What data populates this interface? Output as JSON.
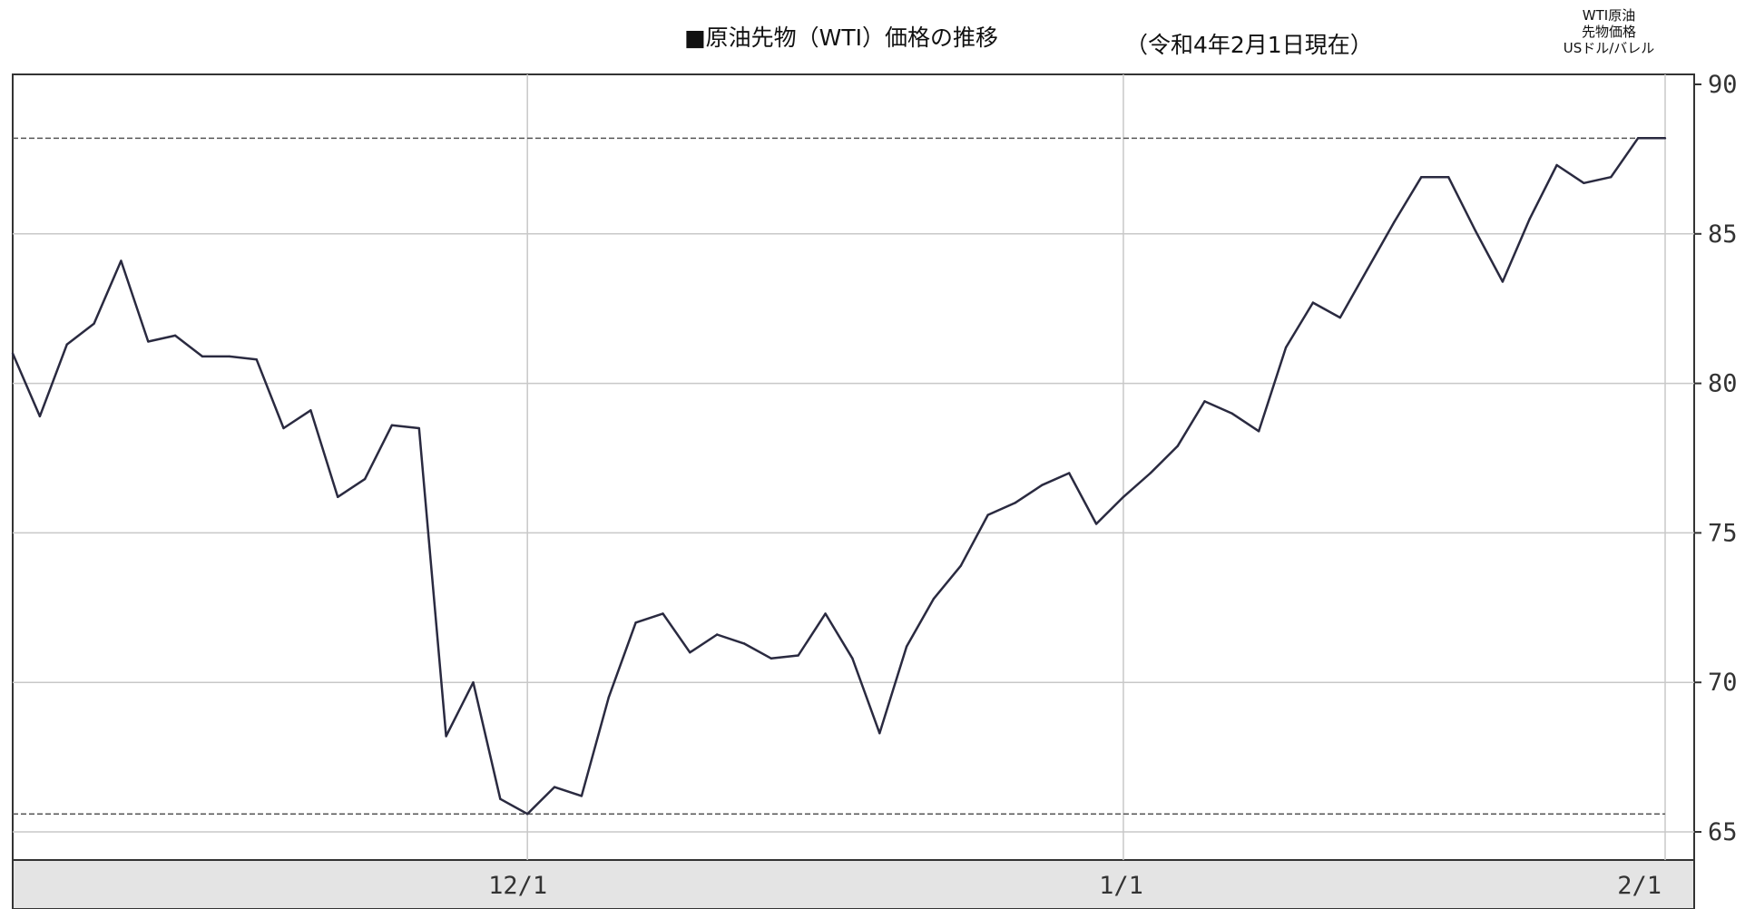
{
  "title": "■原油先物（WTI）価格の推移",
  "date_note": "（令和4年2月1日現在）",
  "unit_label": [
    "WTI原油",
    "先物価格",
    "USドル/バレル"
  ],
  "chart_data": {
    "type": "line",
    "title": "■原油先物（WTI）価格の推移",
    "ylabel": "WTI原油 先物価格 USドル/バレル",
    "ylim": [
      65,
      90
    ],
    "yticks": [
      65,
      70,
      75,
      80,
      85,
      90
    ],
    "xticks": [
      {
        "label": "12/1",
        "x": 19
      },
      {
        "label": "1/1",
        "x": 41
      },
      {
        "label": "2/1",
        "x": 61
      }
    ],
    "x_domain": [
      0,
      61
    ],
    "reference_lines": [
      88.2,
      65.6
    ],
    "series": [
      {
        "color": "#2a2a40",
        "points": [
          [
            0,
            81.0
          ],
          [
            1,
            78.9
          ],
          [
            2,
            81.3
          ],
          [
            3,
            82.0
          ],
          [
            4,
            84.1
          ],
          [
            5,
            81.4
          ],
          [
            6,
            81.6
          ],
          [
            7,
            80.9
          ],
          [
            8,
            80.9
          ],
          [
            9,
            80.8
          ],
          [
            10,
            78.5
          ],
          [
            11,
            79.1
          ],
          [
            12,
            76.2
          ],
          [
            13,
            76.8
          ],
          [
            14,
            78.6
          ],
          [
            15,
            78.5
          ],
          [
            16,
            68.2
          ],
          [
            17,
            70.0
          ],
          [
            18,
            66.1
          ],
          [
            19,
            65.6
          ],
          [
            20,
            66.5
          ],
          [
            21,
            66.2
          ],
          [
            22,
            69.5
          ],
          [
            23,
            72.0
          ],
          [
            24,
            72.3
          ],
          [
            25,
            71.0
          ],
          [
            26,
            71.6
          ],
          [
            27,
            71.3
          ],
          [
            28,
            70.8
          ],
          [
            29,
            70.9
          ],
          [
            30,
            72.3
          ],
          [
            31,
            70.8
          ],
          [
            32,
            68.3
          ],
          [
            33,
            71.2
          ],
          [
            34,
            72.8
          ],
          [
            35,
            73.9
          ],
          [
            36,
            75.6
          ],
          [
            37,
            76.0
          ],
          [
            38,
            76.6
          ],
          [
            39,
            77.0
          ],
          [
            40,
            75.3
          ],
          [
            41,
            76.2
          ],
          [
            42,
            77.0
          ],
          [
            43,
            77.9
          ],
          [
            44,
            79.4
          ],
          [
            45,
            79.0
          ],
          [
            46,
            78.4
          ],
          [
            47,
            81.2
          ],
          [
            48,
            82.7
          ],
          [
            49,
            82.2
          ],
          [
            50,
            83.8
          ],
          [
            51,
            85.4
          ],
          [
            52,
            86.9
          ],
          [
            53,
            86.9
          ],
          [
            54,
            85.1
          ],
          [
            55,
            83.4
          ],
          [
            56,
            85.5
          ],
          [
            57,
            87.3
          ],
          [
            58,
            86.7
          ],
          [
            59,
            86.9
          ],
          [
            60,
            88.2
          ],
          [
            61,
            88.2
          ]
        ]
      }
    ]
  }
}
